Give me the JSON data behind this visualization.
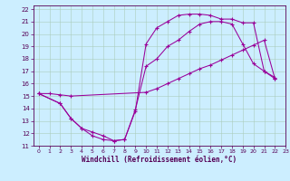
{
  "bg_color": "#cceeff",
  "line_color": "#990099",
  "xlabel": "Windchill (Refroidissement éolien,°C)",
  "xlim": [
    -0.5,
    23
  ],
  "ylim": [
    11,
    22.3
  ],
  "xticks": [
    0,
    1,
    2,
    3,
    4,
    5,
    6,
    7,
    8,
    9,
    10,
    11,
    12,
    13,
    14,
    15,
    16,
    17,
    18,
    19,
    20,
    21,
    22,
    23
  ],
  "yticks": [
    11,
    12,
    13,
    14,
    15,
    16,
    17,
    18,
    19,
    20,
    21,
    22
  ],
  "curves": [
    {
      "x": [
        0,
        1,
        2,
        3,
        10,
        11,
        12,
        13,
        14,
        15,
        16,
        17,
        18,
        19,
        20,
        21,
        22
      ],
      "y": [
        15.2,
        15.2,
        15.1,
        15.0,
        15.3,
        15.6,
        16.0,
        16.4,
        16.8,
        17.2,
        17.5,
        17.9,
        18.3,
        18.7,
        19.1,
        19.5,
        16.4
      ]
    },
    {
      "x": [
        0,
        2,
        3,
        4,
        5,
        6,
        7,
        8,
        9,
        10,
        11,
        12,
        13,
        14,
        15,
        16,
        17,
        18,
        19,
        20,
        21,
        22
      ],
      "y": [
        15.2,
        14.4,
        13.2,
        12.4,
        11.8,
        11.5,
        11.4,
        11.5,
        13.8,
        19.2,
        20.5,
        21.0,
        21.5,
        21.6,
        21.6,
        21.5,
        21.2,
        21.2,
        20.9,
        20.9,
        17.0,
        16.5
      ]
    },
    {
      "x": [
        0,
        2,
        3,
        4,
        5,
        6,
        7,
        8,
        9,
        10,
        11,
        12,
        13,
        14,
        15,
        16,
        17,
        18,
        19,
        20,
        21,
        22
      ],
      "y": [
        15.2,
        14.4,
        13.2,
        12.4,
        12.1,
        11.8,
        11.4,
        11.5,
        13.9,
        17.4,
        18.0,
        19.0,
        19.5,
        20.2,
        20.8,
        21.0,
        21.0,
        20.8,
        19.2,
        17.6,
        17.0,
        16.4
      ]
    }
  ]
}
